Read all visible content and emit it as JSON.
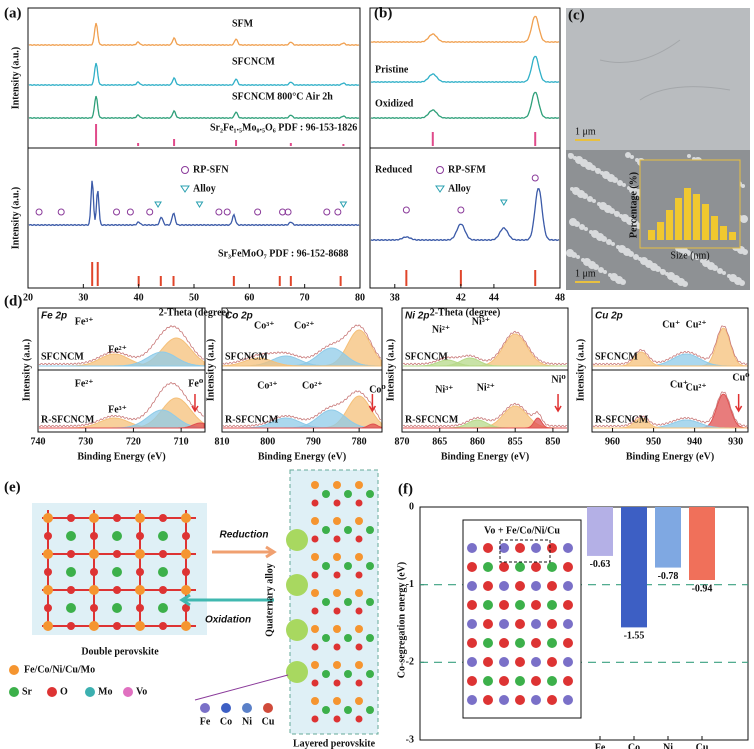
{
  "panels": {
    "a": {
      "label": "(a)",
      "xlabel": "2-Theta (degree)",
      "ylabel": "Intensity (a.u.)",
      "xlim": [
        20,
        80
      ],
      "xticks": [
        20,
        30,
        40,
        50,
        60,
        70,
        80
      ],
      "traces": [
        "SFM",
        "SFCNCM",
        "SFCNCM   800°C Air 2h"
      ],
      "top_ref": "Sr₂Fe₁.₅Mo₀.₅O₆  PDF : 96-153-1826",
      "legend": [
        "RP-SFN",
        "Alloy"
      ],
      "bottom_ref": "Sr₃FeMoO₇  PDF : 96-152-8688"
    },
    "b": {
      "label": "(b)",
      "xlabel": "2-Theta (degree)",
      "xlim": [
        36.5,
        48
      ],
      "xticks": [
        38,
        42,
        44,
        48
      ],
      "traces": [
        "Pristine",
        "Oxidized",
        "Reduced"
      ],
      "legend": [
        "RP-SFM",
        "Alloy"
      ]
    },
    "c": {
      "label": "(c)",
      "scale_top": "1 μm",
      "scale_bottom": "1 μm",
      "inset_xlabel": "Size (nm)",
      "inset_ylabel": "Percentage (%)"
    },
    "d": {
      "label": "(d)",
      "xlabel": "Binding Energy (eV)",
      "ylabel": "Intensity (a.u.)",
      "subpanels": [
        {
          "title": "Fe 2p",
          "xlim": [
            740,
            705
          ],
          "xticks": [
            740,
            730,
            720,
            710
          ],
          "top": "SFCNCM",
          "bottom": "R-SFCNCM",
          "species": [
            "Fe³⁺",
            "Fe²⁺",
            "Fe²⁺",
            "Fe³⁺",
            "Fe⁰"
          ]
        },
        {
          "title": "Co 2p",
          "xlim": [
            810,
            775
          ],
          "xticks": [
            810,
            800,
            790,
            780
          ],
          "top": "SFCNCM",
          "bottom": "R-SFCNCM",
          "species": [
            "Co³⁺",
            "Co²⁺",
            "Co³⁺",
            "Co²⁺",
            "Co⁰"
          ]
        },
        {
          "title": "Ni 2p",
          "xlim": [
            870,
            848
          ],
          "xticks": [
            870,
            865,
            860,
            855,
            850
          ],
          "top": "SFCNCM",
          "bottom": "R-SFCNCM",
          "species": [
            "Ni²⁺",
            "Ni³⁺",
            "Ni³⁺",
            "Ni²⁺",
            "Ni⁰"
          ]
        },
        {
          "title": "Cu 2p",
          "xlim": [
            965,
            927
          ],
          "xticks": [
            960,
            950,
            940,
            930
          ],
          "top": "SFCNCM",
          "bottom": "R-SFCNCM",
          "species": [
            "Cu⁺",
            "Cu²⁺",
            "Cu⁺",
            "Cu²⁺",
            "Cu⁰"
          ]
        }
      ]
    },
    "e": {
      "label": "(e)",
      "reduction": "Reduction",
      "oxidation": "Oxidation",
      "double": "Double perovskite",
      "alloy": "Quaternary alloy",
      "layered": "Layered perovskite",
      "legend_main": "Fe/Co/Ni/Cu/Mo",
      "legend_atoms": [
        "Sr",
        "O",
        "Mo",
        "Vo"
      ],
      "alloy_atoms": [
        "Fe",
        "Co",
        "Ni",
        "Cu"
      ]
    },
    "f": {
      "label": "(f)",
      "inset": "Vo + Fe/Co/Ni/Cu"
    }
  },
  "chart_data": {
    "type": "bar",
    "ylabel": "Co-segregation energy (eV)",
    "categories": [
      "Fe",
      "Co",
      "Ni",
      "Cu"
    ],
    "values": [
      -0.63,
      -1.55,
      -0.78,
      -0.94
    ],
    "colors": [
      "#b4b0e6",
      "#3d5fc4",
      "#7fa8e2",
      "#f0705a"
    ],
    "ylim": [
      -3,
      0
    ],
    "yticks": [
      0,
      -1,
      -2,
      -3
    ],
    "grid": true,
    "grid_style": "dashed",
    "grid_color": "#3aa080"
  }
}
